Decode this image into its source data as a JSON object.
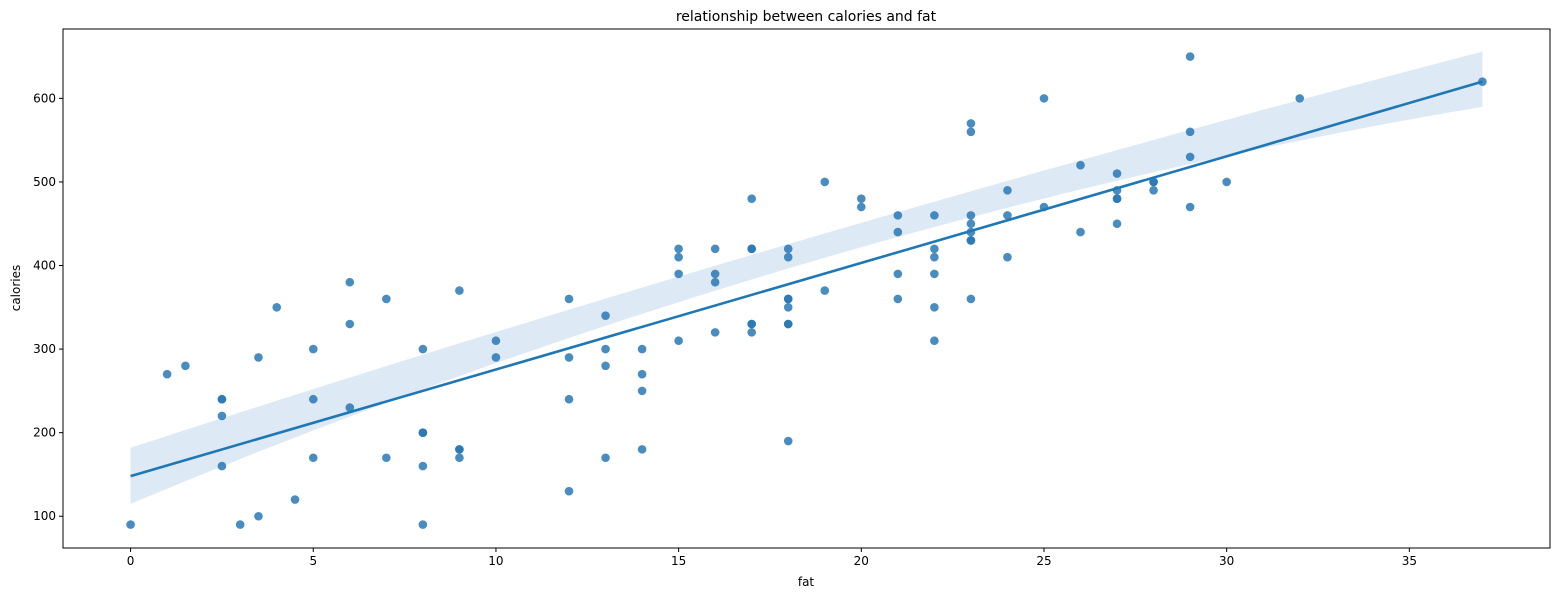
{
  "chart_data": {
    "type": "scatter",
    "title": "relationship between calories and fat",
    "xlabel": "fat",
    "ylabel": "calories",
    "xlim": [
      -1.85,
      38.85
    ],
    "ylim": [
      62,
      683
    ],
    "xticks": [
      0,
      5,
      10,
      15,
      20,
      25,
      30,
      35
    ],
    "yticks": [
      100,
      200,
      300,
      400,
      500,
      600
    ],
    "grid": false,
    "point_color": "#2878b5",
    "line_color": "#1f77b4",
    "band_color": "#c6dbef",
    "regression": {
      "x_range": [
        0,
        37
      ],
      "start": 148,
      "end": 620,
      "ci_lower_start": 115,
      "ci_upper_start": 182,
      "ci_lower_end": 590,
      "ci_upper_end": 656,
      "ci_lower_mid": 403,
      "ci_upper_mid": 432,
      "ci_mid_x": 18.5
    },
    "points": [
      [
        0,
        90
      ],
      [
        1,
        270
      ],
      [
        1.5,
        280
      ],
      [
        2.5,
        240
      ],
      [
        2.5,
        240
      ],
      [
        2.5,
        220
      ],
      [
        2.5,
        160
      ],
      [
        3,
        90
      ],
      [
        3.5,
        290
      ],
      [
        3.5,
        100
      ],
      [
        4,
        350
      ],
      [
        4.5,
        120
      ],
      [
        5,
        300
      ],
      [
        5,
        240
      ],
      [
        5,
        170
      ],
      [
        6,
        380
      ],
      [
        6,
        330
      ],
      [
        6,
        230
      ],
      [
        7,
        360
      ],
      [
        7,
        170
      ],
      [
        8,
        300
      ],
      [
        8,
        200
      ],
      [
        8,
        200
      ],
      [
        8,
        160
      ],
      [
        8,
        90
      ],
      [
        9,
        370
      ],
      [
        9,
        180
      ],
      [
        9,
        180
      ],
      [
        9,
        170
      ],
      [
        10,
        310
      ],
      [
        10,
        290
      ],
      [
        12,
        360
      ],
      [
        12,
        290
      ],
      [
        12,
        240
      ],
      [
        12,
        130
      ],
      [
        13,
        340
      ],
      [
        13,
        300
      ],
      [
        13,
        280
      ],
      [
        13,
        170
      ],
      [
        14,
        300
      ],
      [
        14,
        270
      ],
      [
        14,
        250
      ],
      [
        14,
        180
      ],
      [
        15,
        420
      ],
      [
        15,
        410
      ],
      [
        15,
        390
      ],
      [
        15,
        310
      ],
      [
        16,
        420
      ],
      [
        16,
        390
      ],
      [
        16,
        380
      ],
      [
        16,
        320
      ],
      [
        17,
        480
      ],
      [
        17,
        420
      ],
      [
        17,
        420
      ],
      [
        17,
        330
      ],
      [
        17,
        330
      ],
      [
        17,
        320
      ],
      [
        18,
        420
      ],
      [
        18,
        410
      ],
      [
        18,
        360
      ],
      [
        18,
        360
      ],
      [
        18,
        350
      ],
      [
        18,
        330
      ],
      [
        18,
        330
      ],
      [
        18,
        190
      ],
      [
        19,
        500
      ],
      [
        19,
        370
      ],
      [
        20,
        480
      ],
      [
        20,
        470
      ],
      [
        21,
        460
      ],
      [
        21,
        440
      ],
      [
        21,
        390
      ],
      [
        21,
        360
      ],
      [
        22,
        460
      ],
      [
        22,
        420
      ],
      [
        22,
        410
      ],
      [
        22,
        390
      ],
      [
        22,
        350
      ],
      [
        22,
        310
      ],
      [
        23,
        570
      ],
      [
        23,
        560
      ],
      [
        23,
        460
      ],
      [
        23,
        450
      ],
      [
        23,
        440
      ],
      [
        23,
        430
      ],
      [
        23,
        430
      ],
      [
        23,
        360
      ],
      [
        24,
        490
      ],
      [
        24,
        460
      ],
      [
        24,
        410
      ],
      [
        25,
        600
      ],
      [
        25,
        470
      ],
      [
        26,
        520
      ],
      [
        26,
        440
      ],
      [
        27,
        510
      ],
      [
        27,
        490
      ],
      [
        27,
        480
      ],
      [
        27,
        480
      ],
      [
        27,
        450
      ],
      [
        28,
        500
      ],
      [
        28,
        500
      ],
      [
        28,
        490
      ],
      [
        29,
        650
      ],
      [
        29,
        560
      ],
      [
        29,
        530
      ],
      [
        29,
        470
      ],
      [
        30,
        500
      ],
      [
        32,
        600
      ],
      [
        37,
        620
      ]
    ]
  }
}
